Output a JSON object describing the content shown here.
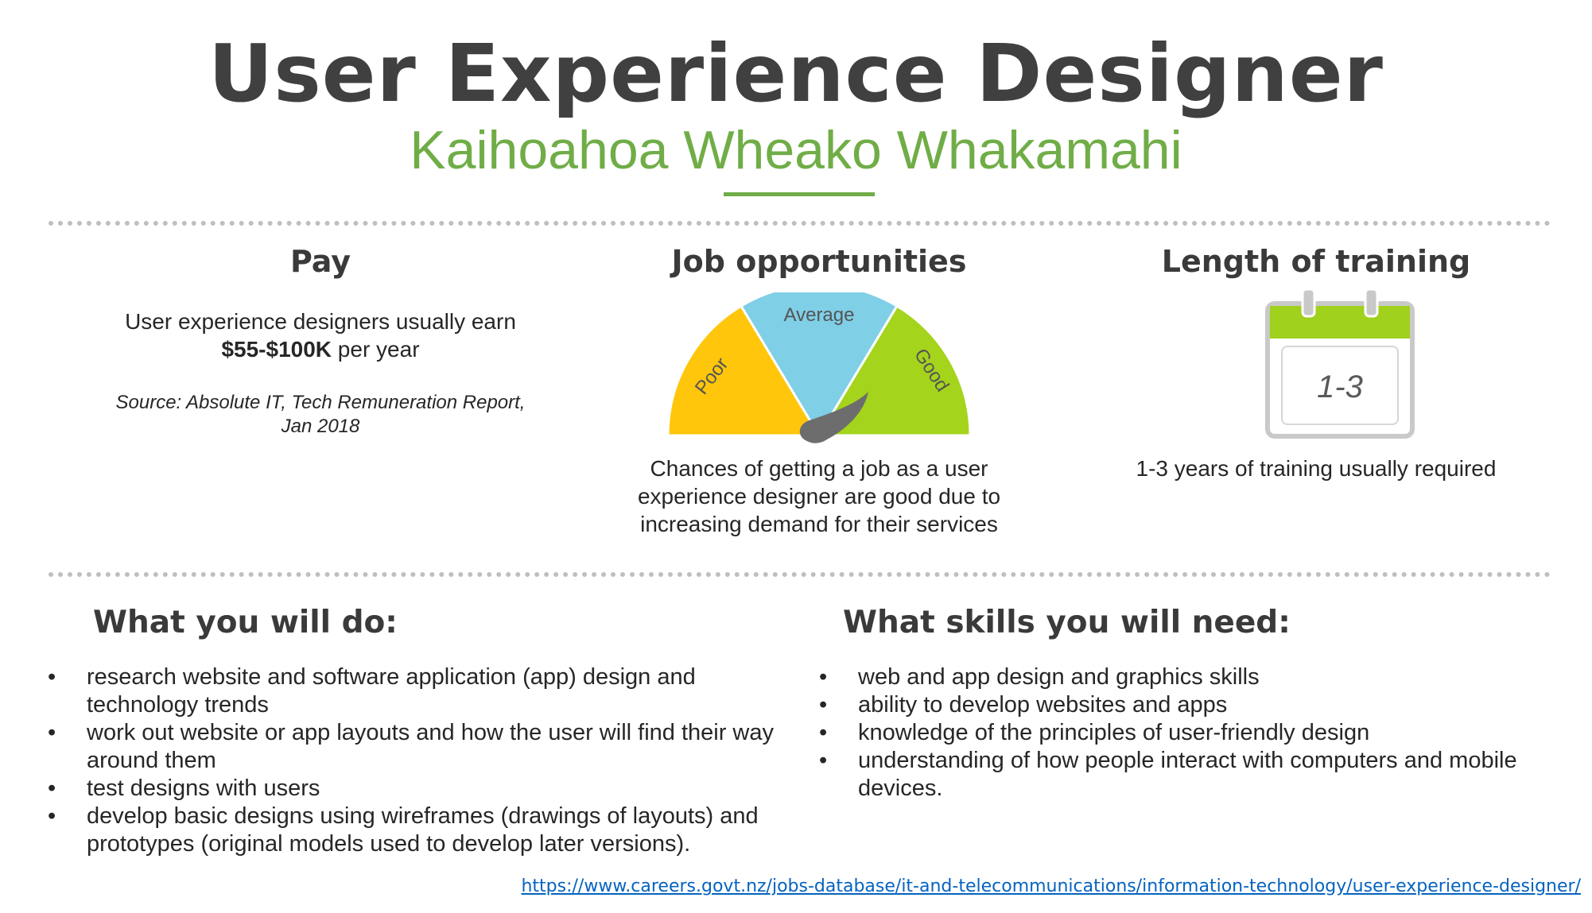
{
  "header": {
    "title": "User Experience Designer",
    "subtitle": "Kaihoahoa Wheako Whakamahi"
  },
  "colors": {
    "title": "#404040",
    "accent_green": "#70ad47",
    "poor": "#ffc60b",
    "average": "#7fcfe6",
    "good": "#a4d41c",
    "needle": "#6d6d6d",
    "link": "#0563c1"
  },
  "pay": {
    "heading": "Pay",
    "line1": "User experience designers usually earn",
    "amount": "$55-$100K",
    "suffix": " per year",
    "source_line1": "Source: Absolute IT, Tech Remuneration Report,",
    "source_line2": "Jan 2018"
  },
  "jobs": {
    "heading": "Job opportunities",
    "gauge": {
      "labels": [
        "Poor",
        "Average",
        "Good"
      ],
      "value": "Good",
      "icon": "gauge-icon"
    },
    "description_lines": [
      "Chances of getting a job as a user",
      "experience designer are good due to",
      "increasing demand for their services"
    ]
  },
  "training": {
    "heading": "Length of training",
    "calendar_icon": "calendar-icon",
    "calendar_value": "1-3",
    "description": "1-3 years of training usually required"
  },
  "duties": {
    "heading": "What you will do:",
    "items": [
      "research website and software application (app) design and technology trends",
      "work out website or app layouts and how the user will find their way around them",
      "test designs with users",
      "develop basic designs using wireframes (drawings of layouts) and prototypes (original models used to develop later versions)."
    ]
  },
  "skills": {
    "heading": "What skills you will need:",
    "items": [
      "web and app design and graphics skills",
      "ability to develop websites and apps",
      "knowledge of the principles of user-friendly design",
      "understanding of how people interact with computers and mobile devices."
    ]
  },
  "footer": {
    "url": "https://www.careers.govt.nz/jobs-database/it-and-telecommunications/information-technology/user-experience-designer/"
  }
}
